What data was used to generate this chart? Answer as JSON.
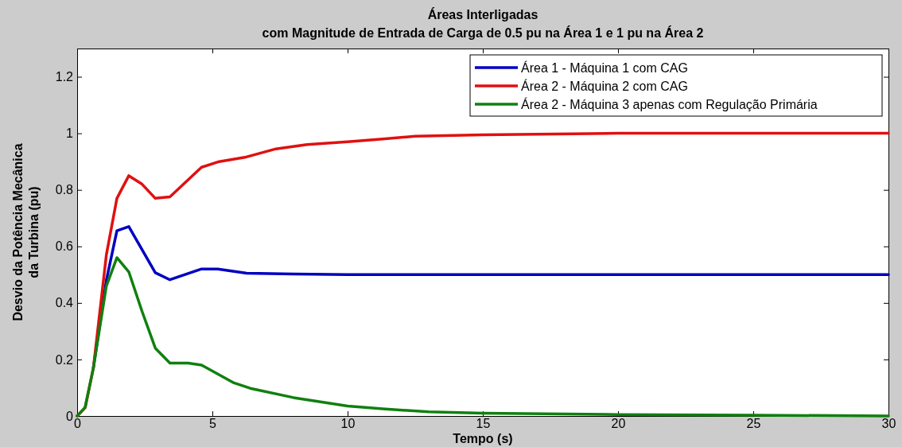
{
  "chart_data": {
    "type": "line",
    "title": "Áreas Interligadas",
    "subtitle": "com Magnitude de Entrada de Carga de 0.5 pu na Área 1 e 1 pu na Área 2",
    "xlabel": "Tempo (s)",
    "ylabel": "Desvio da Potência Mecânica da Turbina (pu)",
    "xlim": [
      0,
      30
    ],
    "xticks": [
      0,
      5,
      10,
      15,
      20,
      25,
      30
    ],
    "ylim": [
      0,
      1.3
    ],
    "yticks": [
      0,
      0.2,
      0.4,
      0.6,
      0.8,
      1,
      1.2
    ],
    "grid": false,
    "legend": "top right",
    "line_style": "solid",
    "marker": "none",
    "series": [
      {
        "name": "Área 1 - Máquina 1 com CAG",
        "color": "#0000c0",
        "x": [
          0.6,
          1.08,
          1.47,
          1.91,
          2.89,
          3.43,
          4.6,
          5.2,
          6.27,
          8,
          10,
          15,
          20,
          25,
          30
        ],
        "values": [
          0.17,
          0.48,
          0.655,
          0.67,
          0.507,
          0.482,
          0.52,
          0.52,
          0.505,
          0.502,
          0.5,
          0.5,
          0.5,
          0.5,
          0.5
        ]
      },
      {
        "name": "Área 2 - Máquina 2 com CAG",
        "color": "#e01010",
        "x": [
          0,
          0.3,
          0.6,
          1.08,
          1.47,
          1.91,
          2.4,
          2.89,
          3.43,
          4.6,
          5.25,
          6.2,
          7.35,
          8.5,
          10,
          11.3,
          12.5,
          15,
          20,
          25,
          30
        ],
        "values": [
          0,
          0.03,
          0.17,
          0.57,
          0.77,
          0.85,
          0.82,
          0.77,
          0.775,
          0.88,
          0.9,
          0.915,
          0.945,
          0.96,
          0.97,
          0.98,
          0.99,
          0.995,
          1,
          1,
          1
        ]
      },
      {
        "name": "Área 2 - Máquina 3 apenas com Regulação Primária",
        "color": "#108010",
        "x": [
          0,
          0.29,
          0.6,
          1.08,
          1.47,
          1.91,
          2.4,
          2.89,
          3.43,
          4.1,
          4.6,
          5.8,
          6.4,
          8,
          10,
          11.3,
          13,
          15,
          20,
          25,
          30
        ],
        "values": [
          0,
          0.03,
          0.17,
          0.46,
          0.56,
          0.51,
          0.37,
          0.24,
          0.187,
          0.187,
          0.18,
          0.117,
          0.098,
          0.065,
          0.035,
          0.025,
          0.015,
          0.01,
          0.005,
          0.003,
          0
        ]
      }
    ]
  }
}
